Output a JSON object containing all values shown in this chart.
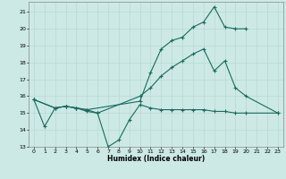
{
  "title": "",
  "xlabel": "Humidex (Indice chaleur)",
  "bg_color": "#cce9e5",
  "grid_color": "#b8d8d4",
  "line_color": "#1a6b5e",
  "xlim": [
    -0.5,
    23.5
  ],
  "ylim": [
    13,
    21.6
  ],
  "yticks": [
    13,
    14,
    15,
    16,
    17,
    18,
    19,
    20,
    21
  ],
  "xticks": [
    0,
    1,
    2,
    3,
    4,
    5,
    6,
    7,
    8,
    9,
    10,
    11,
    12,
    13,
    14,
    15,
    16,
    17,
    18,
    19,
    20,
    21,
    22,
    23
  ],
  "line1_x": [
    0,
    1,
    2,
    3,
    4,
    5,
    6,
    7,
    8,
    9,
    10,
    11,
    12,
    13,
    14,
    15,
    16,
    17,
    18,
    19,
    20,
    23
  ],
  "line1_y": [
    15.8,
    14.2,
    15.3,
    15.4,
    15.3,
    15.1,
    15.0,
    13.0,
    13.4,
    14.6,
    15.5,
    15.3,
    15.2,
    15.2,
    15.2,
    15.2,
    15.2,
    15.1,
    15.1,
    15.0,
    15.0,
    15.0
  ],
  "line2_x": [
    0,
    2,
    3,
    4,
    5,
    10,
    11,
    12,
    13,
    14,
    15,
    16,
    17,
    18,
    19,
    20
  ],
  "line2_y": [
    15.8,
    15.3,
    15.4,
    15.3,
    15.2,
    15.7,
    17.4,
    18.8,
    19.3,
    19.5,
    20.1,
    20.4,
    21.3,
    20.1,
    20.0,
    20.0
  ],
  "line3_x": [
    0,
    2,
    3,
    4,
    5,
    6,
    10,
    11,
    12,
    13,
    14,
    15,
    16,
    17,
    18,
    19,
    20,
    23
  ],
  "line3_y": [
    15.8,
    15.3,
    15.4,
    15.3,
    15.2,
    15.0,
    16.0,
    16.5,
    17.2,
    17.7,
    18.1,
    18.5,
    18.8,
    17.5,
    18.1,
    16.5,
    16.0,
    15.0
  ]
}
